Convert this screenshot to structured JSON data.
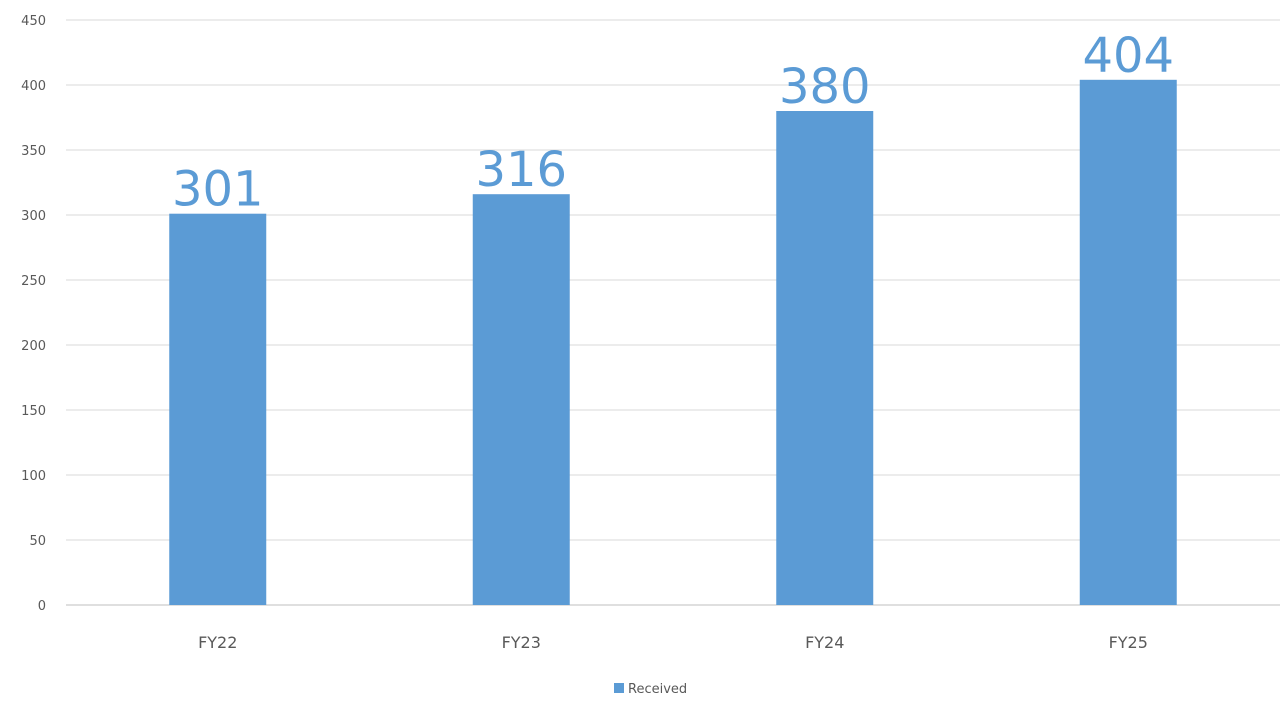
{
  "chart_data": {
    "type": "bar",
    "title": "",
    "xlabel": "",
    "ylabel": "",
    "categories": [
      "FY22",
      "FY23",
      "FY24",
      "FY25"
    ],
    "series": [
      {
        "name": "Received",
        "values": [
          301,
          316,
          380,
          404
        ]
      }
    ],
    "data_labels": [
      "301",
      "316",
      "380",
      "404"
    ],
    "ylim": [
      0,
      450
    ],
    "y_ticks": [
      0,
      50,
      100,
      150,
      200,
      250,
      300,
      350,
      400,
      450
    ],
    "grid": true,
    "legend": {
      "position": "bottom",
      "entries": [
        "Received"
      ]
    },
    "colors": {
      "bar": "#5B9BD5",
      "data_label": "#5B9BD5",
      "gridline": "#D9D9D9",
      "axis_text": "#595959"
    }
  }
}
